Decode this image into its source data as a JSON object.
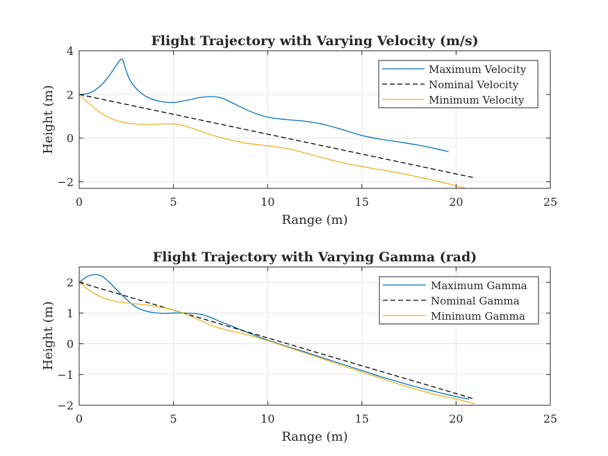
{
  "colors": {
    "maximum": "#0072BD",
    "nominal": "#000000",
    "minimum": "#EDB120",
    "grid": "#e4e4e4",
    "axis": "#262626"
  },
  "chart_data": [
    {
      "type": "line",
      "title": "Flight Trajectory with Varying Velocity (m/s)",
      "xlabel": "Range (m)",
      "ylabel": "Height (m)",
      "xlim": [
        0,
        25
      ],
      "ylim": [
        -2.3,
        4
      ],
      "xticks": [
        0,
        5,
        10,
        15,
        20,
        25
      ],
      "yticks": [
        -2,
        0,
        2,
        4
      ],
      "grid": true,
      "legend_position": "top-right",
      "series": [
        {
          "name": "Maximum Velocity",
          "color": "#0072BD",
          "dash": "solid",
          "x": [
            0,
            0.5,
            1,
            1.5,
            1.9,
            2.15,
            2.3,
            2.45,
            2.7,
            3.1,
            3.6,
            4.2,
            4.8,
            5.2,
            5.8,
            6.4,
            7,
            7.5,
            8,
            9,
            10,
            11,
            12,
            13,
            14,
            15,
            16,
            17,
            18,
            19,
            19.6
          ],
          "y": [
            2,
            2.05,
            2.3,
            2.75,
            3.25,
            3.55,
            3.6,
            3.2,
            2.65,
            2.2,
            1.88,
            1.7,
            1.63,
            1.65,
            1.75,
            1.86,
            1.9,
            1.85,
            1.67,
            1.25,
            0.96,
            0.85,
            0.77,
            0.62,
            0.38,
            0.12,
            -0.05,
            -0.18,
            -0.32,
            -0.5,
            -0.62
          ]
        },
        {
          "name": "Nominal Velocity",
          "color": "#000000",
          "dash": "dashed",
          "x": [
            0,
            21
          ],
          "y": [
            2,
            -1.82
          ]
        },
        {
          "name": "Minimum Velocity",
          "color": "#EDB120",
          "dash": "solid",
          "x": [
            0,
            0.5,
            1,
            1.5,
            2,
            2.5,
            3,
            3.5,
            4,
            4.5,
            5,
            5.5,
            6,
            6.5,
            7,
            8,
            9,
            10,
            11,
            12,
            13,
            14,
            15,
            16,
            17,
            18,
            19,
            20,
            20.5
          ],
          "y": [
            2,
            1.6,
            1.25,
            0.97,
            0.8,
            0.7,
            0.65,
            0.62,
            0.63,
            0.65,
            0.65,
            0.58,
            0.45,
            0.3,
            0.15,
            -0.08,
            -0.25,
            -0.35,
            -0.47,
            -0.68,
            -0.92,
            -1.13,
            -1.3,
            -1.45,
            -1.6,
            -1.78,
            -1.97,
            -2.18,
            -2.3
          ]
        }
      ]
    },
    {
      "type": "line",
      "title": "Flight Trajectory with Varying Gamma (rad)",
      "xlabel": "Range (m)",
      "ylabel": "Height (m)",
      "xlim": [
        0,
        25
      ],
      "ylim": [
        -2,
        2.5
      ],
      "xticks": [
        0,
        5,
        10,
        15,
        20,
        25
      ],
      "yticks": [
        -2,
        -1,
        0,
        1,
        2
      ],
      "grid": true,
      "legend_position": "top-right",
      "series": [
        {
          "name": "Maximum Gamma",
          "color": "#0072BD",
          "dash": "solid",
          "x": [
            0,
            0.4,
            0.8,
            1.2,
            1.6,
            2,
            2.5,
            3,
            3.5,
            4,
            4.5,
            5,
            5.5,
            6,
            6.5,
            7,
            7.5,
            8,
            9,
            10,
            11,
            12,
            13,
            14,
            15,
            16,
            17,
            18,
            19,
            20,
            20.7
          ],
          "y": [
            2,
            2.18,
            2.25,
            2.2,
            2.0,
            1.75,
            1.45,
            1.2,
            1.07,
            1.01,
            0.99,
            1.0,
            1.0,
            0.99,
            0.95,
            0.85,
            0.72,
            0.6,
            0.35,
            0.12,
            -0.08,
            -0.27,
            -0.47,
            -0.67,
            -0.87,
            -1.07,
            -1.25,
            -1.42,
            -1.57,
            -1.72,
            -1.8
          ]
        },
        {
          "name": "Nominal Gamma",
          "color": "#000000",
          "dash": "dashed",
          "x": [
            0,
            21
          ],
          "y": [
            2,
            -1.8
          ]
        },
        {
          "name": "Minimum Gamma",
          "color": "#EDB120",
          "dash": "solid",
          "x": [
            0,
            0.5,
            1,
            1.5,
            2,
            2.5,
            3,
            3.5,
            4,
            4.5,
            5,
            5.5,
            6,
            6.5,
            7,
            7.5,
            8,
            9,
            10,
            11,
            12,
            13,
            14,
            15,
            16,
            17,
            18,
            19,
            20,
            21
          ],
          "y": [
            2,
            1.75,
            1.57,
            1.45,
            1.37,
            1.33,
            1.3,
            1.27,
            1.22,
            1.17,
            1.1,
            1.0,
            0.88,
            0.74,
            0.6,
            0.5,
            0.42,
            0.28,
            0.1,
            -0.1,
            -0.3,
            -0.51,
            -0.72,
            -0.92,
            -1.12,
            -1.32,
            -1.5,
            -1.67,
            -1.8,
            -1.95
          ]
        }
      ]
    }
  ]
}
